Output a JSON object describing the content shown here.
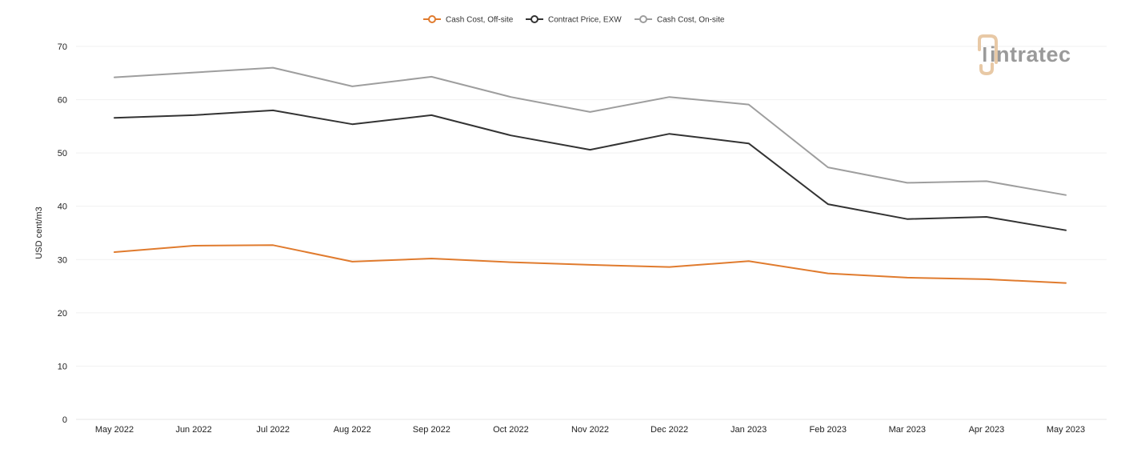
{
  "chart_data": {
    "type": "line",
    "title": "",
    "xlabel": "",
    "ylabel": "USD cent/m3",
    "ylim": [
      0,
      70
    ],
    "yticks": [
      0,
      10,
      20,
      30,
      40,
      50,
      60,
      70
    ],
    "grid": true,
    "legend_position": "top-center",
    "categories": [
      "May 2022",
      "Jun 2022",
      "Jul 2022",
      "Aug 2022",
      "Sep 2022",
      "Oct 2022",
      "Nov 2022",
      "Dec 2022",
      "Jan 2023",
      "Feb 2023",
      "Mar 2023",
      "Apr 2023",
      "May 2023"
    ],
    "series": [
      {
        "name": "Cash Cost, Off-site",
        "color": "#e07b2e",
        "values": [
          31.4,
          32.6,
          32.7,
          29.6,
          30.2,
          29.5,
          29.0,
          28.6,
          29.7,
          27.4,
          26.6,
          26.3,
          25.6
        ]
      },
      {
        "name": "Contract Price, EXW",
        "color": "#333333",
        "values": [
          56.6,
          57.1,
          58.0,
          55.4,
          57.1,
          53.3,
          50.6,
          53.6,
          51.8,
          40.4,
          37.6,
          38.0,
          35.5
        ]
      },
      {
        "name": "Cash Cost, On-site",
        "color": "#9e9e9e",
        "values": [
          64.2,
          65.1,
          66.0,
          62.5,
          64.3,
          60.5,
          57.7,
          60.5,
          59.1,
          47.3,
          44.4,
          44.7,
          42.1
        ]
      }
    ]
  },
  "logo": {
    "text": "intratec",
    "color": "#9a9a9a",
    "accent_color": "#e8c9a6"
  }
}
